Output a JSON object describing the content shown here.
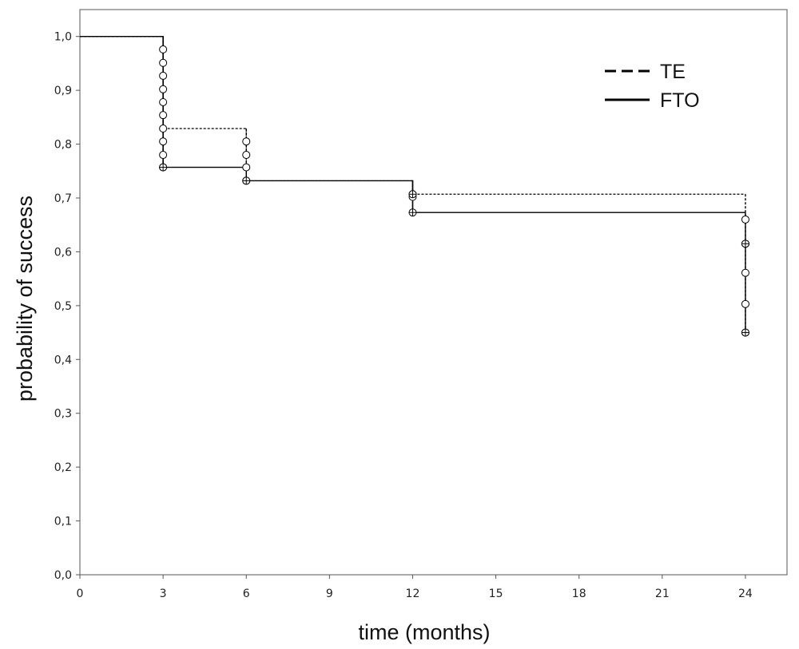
{
  "chart_data": {
    "type": "line",
    "step": true,
    "title": "",
    "xlabel": "time (months)",
    "ylabel": "probability of success",
    "xlim": [
      0,
      25.5
    ],
    "ylim": [
      0,
      1.05
    ],
    "xticks": [
      0,
      3,
      6,
      9,
      12,
      15,
      18,
      21,
      24
    ],
    "xtick_labels": [
      "0",
      "3",
      "6",
      "9",
      "12",
      "15",
      "18",
      "21",
      "24"
    ],
    "yticks": [
      0,
      0.1,
      0.2,
      0.3,
      0.4,
      0.5,
      0.6,
      0.7,
      0.8,
      0.9,
      1.0
    ],
    "ytick_labels": [
      "0,0",
      "0,1",
      "0,2",
      "0,3",
      "0,4",
      "0,5",
      "0,6",
      "0,7",
      "0,8",
      "0,9",
      "1,0"
    ],
    "grid": false,
    "legend_position": "top-right",
    "series": [
      {
        "name": "TE",
        "style": "dashed",
        "color": "#000000",
        "steps": [
          [
            0,
            1.0
          ],
          [
            3,
            0.829
          ],
          [
            6,
            0.732
          ],
          [
            12,
            0.707
          ],
          [
            24,
            0.707
          ]
        ],
        "drop_bottoms": [
          [
            3,
            0.757
          ],
          [
            6,
            0.732
          ],
          [
            12,
            0.707
          ],
          [
            24,
            0.45
          ]
        ],
        "event_markers": [
          {
            "x": 3,
            "y": [
              0.976,
              0.951,
              0.927,
              0.902,
              0.878,
              0.854,
              0.829,
              0.805,
              0.78,
              0.757
            ]
          },
          {
            "x": 6,
            "y": [
              0.805,
              0.78,
              0.757,
              0.732
            ]
          },
          {
            "x": 12,
            "y": [
              0.707,
              0.702
            ]
          },
          {
            "x": 24,
            "y": [
              0.66,
              0.615,
              0.561,
              0.503,
              0.45
            ]
          }
        ]
      },
      {
        "name": "FTO",
        "style": "solid",
        "color": "#000000",
        "steps": [
          [
            0,
            1.0
          ],
          [
            3,
            0.757
          ],
          [
            6,
            0.732
          ],
          [
            12,
            0.673
          ],
          [
            24,
            0.673
          ]
        ],
        "drop_bottoms": [
          [
            3,
            0.757
          ],
          [
            6,
            0.732
          ],
          [
            12,
            0.673
          ],
          [
            24,
            0.45
          ]
        ],
        "censor_markers": [
          {
            "x": 3,
            "y": [
              0.757
            ]
          },
          {
            "x": 6,
            "y": [
              0.732
            ]
          },
          {
            "x": 12,
            "y": [
              0.707,
              0.673
            ]
          },
          {
            "x": 24,
            "y": [
              0.615,
              0.45
            ]
          }
        ]
      }
    ]
  }
}
